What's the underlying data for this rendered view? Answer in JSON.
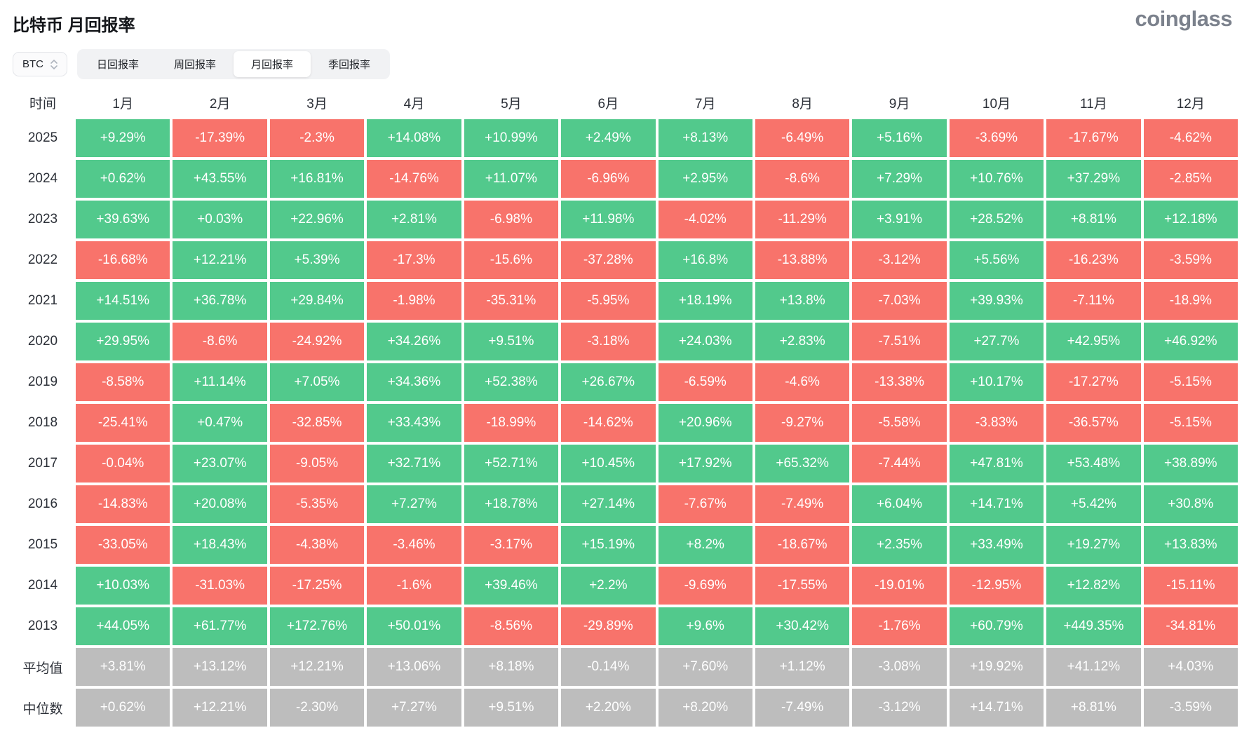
{
  "page": {
    "title": "比特币 月回报率",
    "logo": "coinglass"
  },
  "controls": {
    "coin_selector": {
      "value": "BTC",
      "icon": "sort-arrows-icon"
    },
    "tabs": [
      {
        "label": "日回报率",
        "active": false
      },
      {
        "label": "周回报率",
        "active": false
      },
      {
        "label": "月回报率",
        "active": true
      },
      {
        "label": "季回报率",
        "active": false
      }
    ]
  },
  "colors": {
    "positive": "#52c98c",
    "negative": "#f8736b",
    "summary": "#bdbdbd"
  },
  "table": {
    "time_label": "时间",
    "months": [
      "1月",
      "2月",
      "3月",
      "4月",
      "5月",
      "6月",
      "7月",
      "8月",
      "9月",
      "10月",
      "11月",
      "12月"
    ],
    "rows": [
      {
        "label": "2025",
        "type": "year",
        "values": [
          "+9.29%",
          "-17.39%",
          "-2.3%",
          "+14.08%",
          "+10.99%",
          "+2.49%",
          "+8.13%",
          "-6.49%",
          "+5.16%",
          "-3.69%",
          "-17.67%",
          "-4.62%"
        ]
      },
      {
        "label": "2024",
        "type": "year",
        "values": [
          "+0.62%",
          "+43.55%",
          "+16.81%",
          "-14.76%",
          "+11.07%",
          "-6.96%",
          "+2.95%",
          "-8.6%",
          "+7.29%",
          "+10.76%",
          "+37.29%",
          "-2.85%"
        ]
      },
      {
        "label": "2023",
        "type": "year",
        "values": [
          "+39.63%",
          "+0.03%",
          "+22.96%",
          "+2.81%",
          "-6.98%",
          "+11.98%",
          "-4.02%",
          "-11.29%",
          "+3.91%",
          "+28.52%",
          "+8.81%",
          "+12.18%"
        ]
      },
      {
        "label": "2022",
        "type": "year",
        "values": [
          "-16.68%",
          "+12.21%",
          "+5.39%",
          "-17.3%",
          "-15.6%",
          "-37.28%",
          "+16.8%",
          "-13.88%",
          "-3.12%",
          "+5.56%",
          "-16.23%",
          "-3.59%"
        ]
      },
      {
        "label": "2021",
        "type": "year",
        "values": [
          "+14.51%",
          "+36.78%",
          "+29.84%",
          "-1.98%",
          "-35.31%",
          "-5.95%",
          "+18.19%",
          "+13.8%",
          "-7.03%",
          "+39.93%",
          "-7.11%",
          "-18.9%"
        ]
      },
      {
        "label": "2020",
        "type": "year",
        "values": [
          "+29.95%",
          "-8.6%",
          "-24.92%",
          "+34.26%",
          "+9.51%",
          "-3.18%",
          "+24.03%",
          "+2.83%",
          "-7.51%",
          "+27.7%",
          "+42.95%",
          "+46.92%"
        ]
      },
      {
        "label": "2019",
        "type": "year",
        "values": [
          "-8.58%",
          "+11.14%",
          "+7.05%",
          "+34.36%",
          "+52.38%",
          "+26.67%",
          "-6.59%",
          "-4.6%",
          "-13.38%",
          "+10.17%",
          "-17.27%",
          "-5.15%"
        ]
      },
      {
        "label": "2018",
        "type": "year",
        "values": [
          "-25.41%",
          "+0.47%",
          "-32.85%",
          "+33.43%",
          "-18.99%",
          "-14.62%",
          "+20.96%",
          "-9.27%",
          "-5.58%",
          "-3.83%",
          "-36.57%",
          "-5.15%"
        ]
      },
      {
        "label": "2017",
        "type": "year",
        "values": [
          "-0.04%",
          "+23.07%",
          "-9.05%",
          "+32.71%",
          "+52.71%",
          "+10.45%",
          "+17.92%",
          "+65.32%",
          "-7.44%",
          "+47.81%",
          "+53.48%",
          "+38.89%"
        ]
      },
      {
        "label": "2016",
        "type": "year",
        "values": [
          "-14.83%",
          "+20.08%",
          "-5.35%",
          "+7.27%",
          "+18.78%",
          "+27.14%",
          "-7.67%",
          "-7.49%",
          "+6.04%",
          "+14.71%",
          "+5.42%",
          "+30.8%"
        ]
      },
      {
        "label": "2015",
        "type": "year",
        "values": [
          "-33.05%",
          "+18.43%",
          "-4.38%",
          "-3.46%",
          "-3.17%",
          "+15.19%",
          "+8.2%",
          "-18.67%",
          "+2.35%",
          "+33.49%",
          "+19.27%",
          "+13.83%"
        ]
      },
      {
        "label": "2014",
        "type": "year",
        "values": [
          "+10.03%",
          "-31.03%",
          "-17.25%",
          "-1.6%",
          "+39.46%",
          "+2.2%",
          "-9.69%",
          "-17.55%",
          "-19.01%",
          "-12.95%",
          "+12.82%",
          "-15.11%"
        ]
      },
      {
        "label": "2013",
        "type": "year",
        "values": [
          "+44.05%",
          "+61.77%",
          "+172.76%",
          "+50.01%",
          "-8.56%",
          "-29.89%",
          "+9.6%",
          "+30.42%",
          "-1.76%",
          "+60.79%",
          "+449.35%",
          "-34.81%"
        ]
      },
      {
        "label": "平均值",
        "type": "summary",
        "values": [
          "+3.81%",
          "+13.12%",
          "+12.21%",
          "+13.06%",
          "+8.18%",
          "-0.14%",
          "+7.60%",
          "+1.12%",
          "-3.08%",
          "+19.92%",
          "+41.12%",
          "+4.03%"
        ]
      },
      {
        "label": "中位数",
        "type": "summary",
        "values": [
          "+0.62%",
          "+12.21%",
          "-2.30%",
          "+7.27%",
          "+9.51%",
          "+2.20%",
          "+8.20%",
          "-7.49%",
          "-3.12%",
          "+14.71%",
          "+8.81%",
          "-3.59%"
        ]
      }
    ]
  }
}
